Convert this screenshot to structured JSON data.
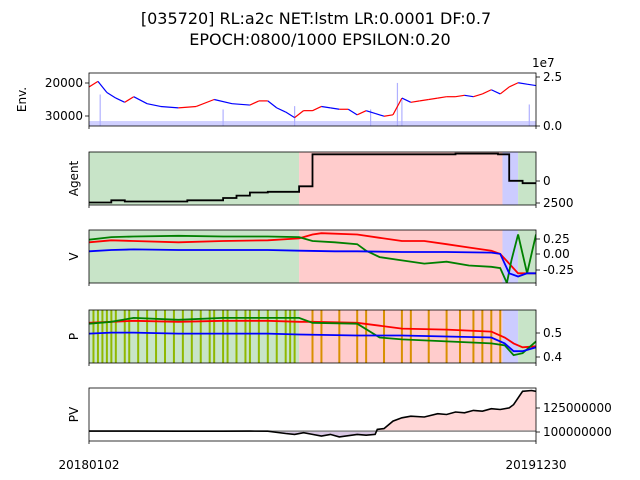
{
  "figure": {
    "title_line1": "[035720] RL:a2c NET:lstm LR:0.0001 DF:0.7",
    "title_line2": "EPOCH:0800/1000 EPSILON:0.20"
  },
  "chart_data": [
    {
      "type": "line",
      "panel": "env",
      "ylabel": "Env.",
      "ylim": [
        15000,
        34000
      ],
      "yticks": [
        "20000",
        "30000"
      ],
      "secondary_axis": {
        "label": "volume",
        "multiplier_label": "1e7",
        "yticks": [
          "0.0",
          "2.5"
        ],
        "ylim": [
          0,
          3.2
        ]
      },
      "series": [
        {
          "kind": "price",
          "colors": {
            "up": "#ff0000",
            "down": "#0000ff"
          },
          "x": [
            0,
            0.02,
            0.04,
            0.06,
            0.08,
            0.1,
            0.13,
            0.16,
            0.2,
            0.24,
            0.28,
            0.32,
            0.36,
            0.38,
            0.4,
            0.42,
            0.44,
            0.46,
            0.48,
            0.5,
            0.52,
            0.54,
            0.56,
            0.58,
            0.6,
            0.62,
            0.64,
            0.66,
            0.68,
            0.7,
            0.72,
            0.74,
            0.76,
            0.78,
            0.8,
            0.82,
            0.84,
            0.86,
            0.88,
            0.9,
            0.92,
            0.94,
            0.96,
            0.98,
            1.0
          ],
          "values": [
            29000,
            31000,
            27000,
            25000,
            23500,
            25500,
            23000,
            22000,
            21500,
            22000,
            24500,
            23000,
            22500,
            24000,
            24000,
            21500,
            20000,
            18000,
            20500,
            20500,
            22000,
            21500,
            21000,
            21000,
            19000,
            20500,
            19500,
            18500,
            19000,
            25000,
            23500,
            24000,
            24500,
            25000,
            25500,
            25500,
            26000,
            25500,
            26500,
            28000,
            26500,
            29000,
            30500,
            30000,
            29500
          ]
        },
        {
          "kind": "volume",
          "color": "#b0b0ff",
          "x": [
            0,
            1
          ],
          "values": [
            0.3,
            0.3
          ],
          "peaks": [
            {
              "x": 0.025,
              "value": 1.9
            },
            {
              "x": 0.3,
              "value": 1.0
            },
            {
              "x": 0.46,
              "value": 1.2
            },
            {
              "x": 0.63,
              "value": 1.0
            },
            {
              "x": 0.69,
              "value": 2.6
            },
            {
              "x": 0.7,
              "value": 1.6
            },
            {
              "x": 0.985,
              "value": 1.3
            }
          ]
        }
      ]
    },
    {
      "type": "line",
      "panel": "agent",
      "ylabel": "Agent",
      "ylim": [
        -300,
        6500
      ],
      "yticks": [
        "0",
        "2500"
      ],
      "regions": [
        {
          "from": 0.0,
          "to": 0.47,
          "label": "buy",
          "color": "#c8e4c8"
        },
        {
          "from": 0.47,
          "to": 0.925,
          "label": "sell",
          "color": "#ffcccc"
        },
        {
          "from": 0.925,
          "to": 0.96,
          "label": "hold",
          "color": "#ccccff"
        },
        {
          "from": 0.96,
          "to": 1.0,
          "label": "buy",
          "color": "#c8e4c8"
        }
      ],
      "series": [
        {
          "name": "",
          "color": "#000000",
          "x": [
            0,
            0.05,
            0.05,
            0.08,
            0.08,
            0.22,
            0.22,
            0.3,
            0.3,
            0.33,
            0.33,
            0.36,
            0.36,
            0.4,
            0.4,
            0.47,
            0.47,
            0.5,
            0.5,
            0.82,
            0.82,
            0.915,
            0.915,
            0.94,
            0.94,
            0.97,
            0.97,
            1.0
          ],
          "values": [
            20,
            20,
            300,
            300,
            150,
            150,
            300,
            300,
            600,
            600,
            900,
            900,
            1300,
            1300,
            1400,
            1400,
            2100,
            2100,
            6200,
            6200,
            6300,
            6300,
            6200,
            6200,
            2800,
            2800,
            2500,
            2500
          ]
        }
      ]
    },
    {
      "type": "line",
      "panel": "V",
      "ylabel": "V",
      "ylim": [
        -0.45,
        0.37
      ],
      "yticks": [
        "0.25",
        "0.00",
        "-0.25"
      ],
      "regions": [
        {
          "from": 0.0,
          "to": 0.47,
          "label": "buy",
          "color": "#c8e4c8"
        },
        {
          "from": 0.47,
          "to": 0.925,
          "label": "sell",
          "color": "#ffcccc"
        },
        {
          "from": 0.925,
          "to": 0.96,
          "label": "hold",
          "color": "#ccccff"
        },
        {
          "from": 0.96,
          "to": 1.0,
          "label": "buy",
          "color": "#c8e4c8"
        }
      ],
      "series": [
        {
          "name": "",
          "color": "#ff0000",
          "x": [
            0,
            0.05,
            0.1,
            0.2,
            0.3,
            0.4,
            0.47,
            0.5,
            0.52,
            0.6,
            0.65,
            0.7,
            0.75,
            0.8,
            0.85,
            0.9,
            0.92,
            0.94,
            0.96,
            0.98,
            1.0
          ],
          "values": [
            0.18,
            0.21,
            0.2,
            0.18,
            0.2,
            0.21,
            0.24,
            0.3,
            0.32,
            0.3,
            0.25,
            0.2,
            0.2,
            0.15,
            0.1,
            0.05,
            0.0,
            -0.15,
            -0.3,
            -0.3,
            -0.3
          ]
        },
        {
          "name": "",
          "color": "#008000",
          "x": [
            0,
            0.05,
            0.1,
            0.2,
            0.3,
            0.4,
            0.47,
            0.5,
            0.55,
            0.6,
            0.62,
            0.65,
            0.7,
            0.75,
            0.8,
            0.85,
            0.9,
            0.92,
            0.935,
            0.945,
            0.96,
            0.98,
            1.0
          ],
          "values": [
            0.22,
            0.26,
            0.27,
            0.28,
            0.27,
            0.27,
            0.26,
            0.2,
            0.18,
            0.15,
            0.05,
            -0.05,
            -0.1,
            -0.15,
            -0.12,
            -0.18,
            -0.2,
            -0.22,
            -0.45,
            -0.1,
            0.3,
            -0.3,
            0.3
          ]
        },
        {
          "name": "",
          "color": "#0000ff",
          "x": [
            0,
            0.05,
            0.1,
            0.2,
            0.3,
            0.4,
            0.47,
            0.55,
            0.6,
            0.7,
            0.8,
            0.9,
            0.92,
            0.94,
            0.96,
            0.98,
            1.0
          ],
          "values": [
            0.04,
            0.06,
            0.07,
            0.06,
            0.06,
            0.06,
            0.05,
            0.04,
            0.04,
            0.03,
            0.03,
            0.02,
            0.0,
            -0.3,
            -0.35,
            -0.3,
            -0.3
          ]
        }
      ]
    },
    {
      "type": "line",
      "panel": "P",
      "ylabel": "P",
      "ylim": [
        0.37,
        0.64
      ],
      "yticks": [
        "0.5",
        "0.4"
      ],
      "regions": [
        {
          "from": 0.0,
          "to": 0.47,
          "label": "buy",
          "color": "#c8e4c8"
        },
        {
          "from": 0.47,
          "to": 0.925,
          "label": "sell",
          "color": "#ffcccc"
        },
        {
          "from": 0.925,
          "to": 0.96,
          "label": "hold",
          "color": "#ccccff"
        },
        {
          "from": 0.96,
          "to": 1.0,
          "label": "buy",
          "color": "#c8e4c8"
        }
      ],
      "markers": [
        {
          "label": "buy",
          "color": "#8fb800",
          "x": [
            0.01,
            0.02,
            0.03,
            0.04,
            0.05,
            0.06,
            0.08,
            0.09,
            0.11,
            0.13,
            0.15,
            0.17,
            0.19,
            0.21,
            0.23,
            0.25,
            0.27,
            0.28,
            0.3,
            0.31,
            0.33,
            0.35,
            0.36,
            0.38,
            0.4,
            0.42,
            0.44,
            0.45,
            0.46
          ]
        },
        {
          "label": "sell",
          "color": "#d89000",
          "x": [
            0.5,
            0.52,
            0.56,
            0.6,
            0.62,
            0.66,
            0.7,
            0.72,
            0.76,
            0.8,
            0.83,
            0.86,
            0.88,
            0.9,
            0.92
          ]
        }
      ],
      "series": [
        {
          "name": "",
          "color": "#ff0000",
          "x": [
            0,
            0.1,
            0.2,
            0.3,
            0.4,
            0.47,
            0.5,
            0.6,
            0.65,
            0.7,
            0.8,
            0.9,
            0.93,
            0.95,
            0.97,
            1.0
          ],
          "values": [
            0.575,
            0.585,
            0.58,
            0.585,
            0.585,
            0.58,
            0.58,
            0.575,
            0.56,
            0.545,
            0.54,
            0.53,
            0.5,
            0.47,
            0.45,
            0.455
          ]
        },
        {
          "name": "",
          "color": "#008000",
          "x": [
            0,
            0.05,
            0.1,
            0.2,
            0.3,
            0.4,
            0.47,
            0.5,
            0.6,
            0.65,
            0.7,
            0.8,
            0.9,
            0.93,
            0.95,
            0.97,
            1.0
          ],
          "values": [
            0.57,
            0.58,
            0.6,
            0.59,
            0.6,
            0.6,
            0.6,
            0.575,
            0.57,
            0.5,
            0.49,
            0.48,
            0.47,
            0.46,
            0.41,
            0.42,
            0.48
          ]
        },
        {
          "name": "",
          "color": "#0000ff",
          "x": [
            0,
            0.05,
            0.1,
            0.2,
            0.3,
            0.4,
            0.47,
            0.6,
            0.7,
            0.8,
            0.9,
            0.93,
            0.95,
            0.97,
            1.0
          ],
          "values": [
            0.52,
            0.525,
            0.525,
            0.52,
            0.52,
            0.52,
            0.515,
            0.51,
            0.51,
            0.505,
            0.5,
            0.47,
            0.43,
            0.43,
            0.45
          ]
        }
      ]
    },
    {
      "type": "area",
      "panel": "PV",
      "ylabel": "PV",
      "ylim": [
        88000000,
        152000000
      ],
      "yticks": [
        "125000000",
        "100000000"
      ],
      "baseline": 100000000,
      "colors": {
        "above": "#ffd8d8",
        "below": "#d8c8e4"
      },
      "series": [
        {
          "name": "",
          "color": "#000000",
          "x": [
            0,
            0.1,
            0.2,
            0.3,
            0.36,
            0.4,
            0.44,
            0.46,
            0.48,
            0.5,
            0.52,
            0.54,
            0.56,
            0.6,
            0.62,
            0.64,
            0.645,
            0.66,
            0.68,
            0.7,
            0.72,
            0.75,
            0.78,
            0.8,
            0.82,
            0.84,
            0.86,
            0.88,
            0.9,
            0.92,
            0.94,
            0.95,
            0.97,
            0.99,
            1.0
          ],
          "values": [
            100000000,
            100000000,
            99800000,
            99800000,
            100000000,
            99800000,
            97000000,
            96000000,
            98000000,
            96000000,
            94000000,
            96000000,
            93000000,
            96000000,
            95000000,
            96000000,
            102000000,
            103000000,
            112000000,
            116000000,
            118000000,
            117000000,
            121000000,
            120000000,
            123000000,
            122000000,
            125000000,
            124000000,
            127000000,
            126000000,
            128000000,
            132000000,
            148000000,
            149000000,
            148000000
          ]
        }
      ]
    }
  ],
  "x_axis": {
    "tick_labels": [
      "20180102",
      "20191230"
    ]
  }
}
